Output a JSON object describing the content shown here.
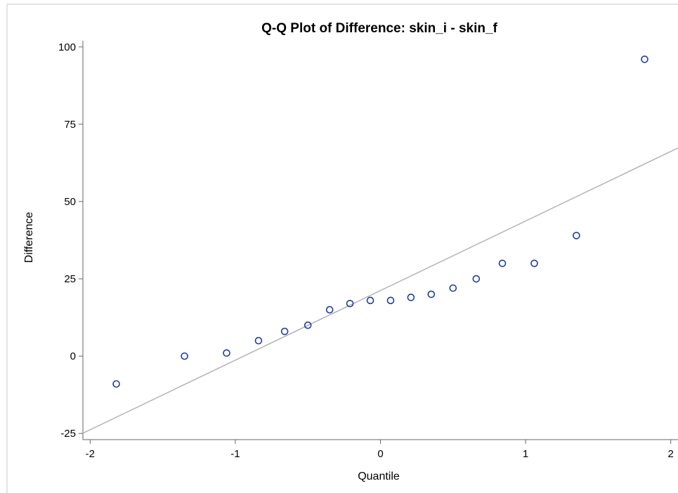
{
  "chart_data": {
    "type": "scatter",
    "title": "Q-Q Plot of Difference: skin_i - skin_f",
    "xlabel": "Quantile",
    "ylabel": "Difference",
    "xlim": [
      -2.05,
      2.05
    ],
    "ylim": [
      -27,
      102
    ],
    "xticks": [
      -2,
      -1,
      0,
      1,
      2
    ],
    "xtick_labels": [
      "-2",
      "-1",
      "0",
      "1",
      "2"
    ],
    "yticks": [
      -25,
      0,
      25,
      50,
      75,
      100
    ],
    "ytick_labels": [
      "-25",
      "0",
      "25",
      "50",
      "75",
      "100"
    ],
    "grid": false,
    "points": [
      {
        "x": -1.82,
        "y": -9
      },
      {
        "x": -1.35,
        "y": 0
      },
      {
        "x": -1.06,
        "y": 1
      },
      {
        "x": -0.84,
        "y": 5
      },
      {
        "x": -0.66,
        "y": 8
      },
      {
        "x": -0.5,
        "y": 10
      },
      {
        "x": -0.35,
        "y": 15
      },
      {
        "x": -0.21,
        "y": 17
      },
      {
        "x": -0.07,
        "y": 18
      },
      {
        "x": 0.07,
        "y": 18
      },
      {
        "x": 0.21,
        "y": 19
      },
      {
        "x": 0.35,
        "y": 20
      },
      {
        "x": 0.5,
        "y": 22
      },
      {
        "x": 0.66,
        "y": 25
      },
      {
        "x": 0.84,
        "y": 30
      },
      {
        "x": 1.06,
        "y": 30
      },
      {
        "x": 1.35,
        "y": 39
      },
      {
        "x": 1.82,
        "y": 96
      }
    ],
    "reference_line": {
      "intercept": 21.2,
      "slope": 22.5
    },
    "colors": {
      "marker": "#1f3f9f",
      "reference_line": "#b4b4b4",
      "axis": "#666666",
      "frame": "#c8c8c8"
    }
  }
}
